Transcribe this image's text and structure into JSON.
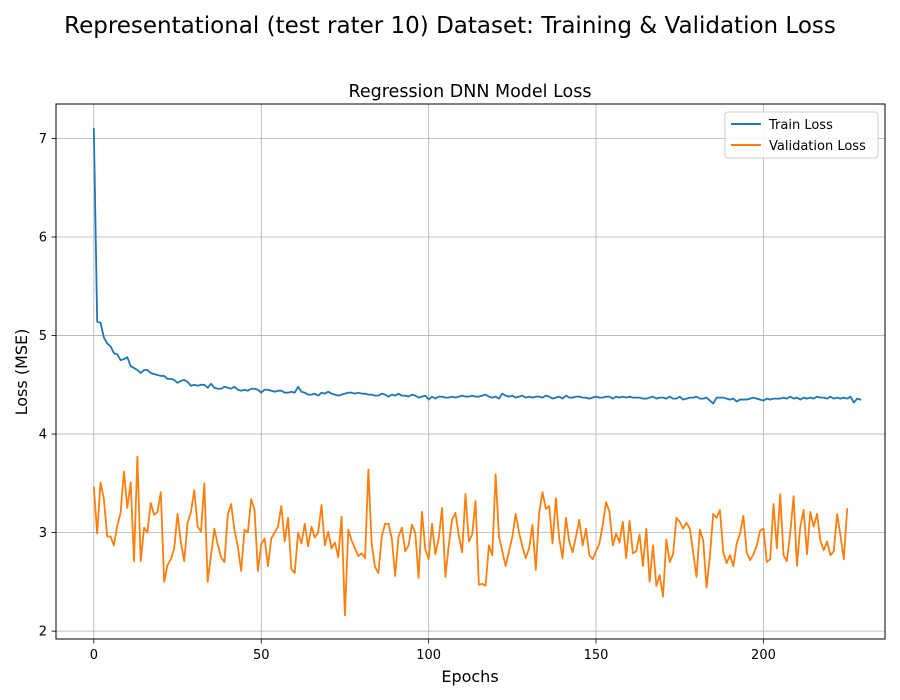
{
  "figure": {
    "suptitle": "Representational (test rater 10) Dataset: Training & Validation Loss"
  },
  "chart_data": {
    "type": "line",
    "title": "Regression DNN Model Loss",
    "xlabel": "Epochs",
    "ylabel": "Loss (MSE)",
    "xlim": [
      -11.3,
      236.3
    ],
    "ylim": [
      1.92,
      7.35
    ],
    "xticks": [
      0,
      50,
      100,
      150,
      200
    ],
    "yticks": [
      2,
      3,
      4,
      5,
      6,
      7
    ],
    "grid": true,
    "legend_position": "top-right",
    "series": [
      {
        "name": "Train Loss",
        "color": "#1f77b4",
        "x_start": 0,
        "x_step": 1,
        "values": [
          7.1,
          5.14,
          5.13,
          4.98,
          4.92,
          4.89,
          4.82,
          4.81,
          4.75,
          4.76,
          4.78,
          4.69,
          4.67,
          4.65,
          4.62,
          4.65,
          4.65,
          4.62,
          4.61,
          4.6,
          4.59,
          4.59,
          4.56,
          4.56,
          4.55,
          4.52,
          4.54,
          4.55,
          4.53,
          4.49,
          4.5,
          4.49,
          4.5,
          4.5,
          4.47,
          4.51,
          4.47,
          4.46,
          4.46,
          4.48,
          4.47,
          4.46,
          4.48,
          4.45,
          4.44,
          4.45,
          4.44,
          4.46,
          4.46,
          4.45,
          4.42,
          4.45,
          4.45,
          4.44,
          4.43,
          4.44,
          4.44,
          4.42,
          4.42,
          4.43,
          4.42,
          4.48,
          4.43,
          4.42,
          4.4,
          4.4,
          4.41,
          4.39,
          4.42,
          4.41,
          4.43,
          4.41,
          4.4,
          4.39,
          4.4,
          4.41,
          4.42,
          4.42,
          4.41,
          4.42,
          4.41,
          4.41,
          4.4,
          4.4,
          4.39,
          4.39,
          4.41,
          4.4,
          4.38,
          4.4,
          4.39,
          4.41,
          4.39,
          4.39,
          4.38,
          4.4,
          4.39,
          4.37,
          4.38,
          4.39,
          4.35,
          4.38,
          4.36,
          4.38,
          4.38,
          4.37,
          4.37,
          4.38,
          4.37,
          4.38,
          4.39,
          4.38,
          4.38,
          4.39,
          4.38,
          4.38,
          4.39,
          4.4,
          4.38,
          4.37,
          4.38,
          4.36,
          4.41,
          4.39,
          4.38,
          4.39,
          4.37,
          4.38,
          4.39,
          4.37,
          4.38,
          4.37,
          4.38,
          4.38,
          4.37,
          4.39,
          4.38,
          4.36,
          4.37,
          4.38,
          4.36,
          4.39,
          4.37,
          4.37,
          4.38,
          4.38,
          4.37,
          4.37,
          4.36,
          4.37,
          4.38,
          4.37,
          4.37,
          4.38,
          4.38,
          4.36,
          4.38,
          4.37,
          4.38,
          4.37,
          4.38,
          4.37,
          4.37,
          4.37,
          4.36,
          4.36,
          4.37,
          4.38,
          4.36,
          4.37,
          4.37,
          4.36,
          4.38,
          4.36,
          4.36,
          4.38,
          4.35,
          4.36,
          4.37,
          4.37,
          4.38,
          4.36,
          4.36,
          4.37,
          4.34,
          4.31,
          4.37,
          4.37,
          4.37,
          4.36,
          4.35,
          4.36,
          4.33,
          4.35,
          4.35,
          4.35,
          4.36,
          4.37,
          4.36,
          4.35,
          4.34,
          4.36,
          4.35,
          4.36,
          4.36,
          4.36,
          4.37,
          4.36,
          4.38,
          4.36,
          4.37,
          4.35,
          4.37,
          4.36,
          4.37,
          4.36,
          4.38,
          4.37,
          4.37,
          4.36,
          4.38,
          4.36,
          4.37,
          4.36,
          4.37,
          4.36,
          4.38,
          4.32,
          4.36,
          4.35
        ]
      },
      {
        "name": "Validation Loss",
        "color": "#ff7f0e",
        "x_start": 0,
        "x_step": 1,
        "values": [
          3.46,
          2.99,
          3.51,
          3.34,
          2.96,
          2.96,
          2.87,
          3.07,
          3.2,
          3.62,
          3.25,
          3.51,
          2.71,
          3.77,
          2.71,
          3.05,
          3.0,
          3.3,
          3.18,
          3.21,
          3.41,
          2.5,
          2.67,
          2.73,
          2.84,
          3.19,
          2.9,
          2.71,
          3.1,
          3.21,
          3.43,
          3.06,
          3.01,
          3.5,
          2.5,
          2.77,
          3.04,
          2.88,
          2.75,
          2.7,
          3.18,
          3.29,
          3.03,
          2.86,
          2.61,
          3.03,
          3.0,
          3.34,
          3.23,
          2.61,
          2.88,
          2.94,
          2.66,
          2.94,
          3.0,
          3.06,
          3.27,
          2.91,
          3.15,
          2.63,
          2.59,
          3.0,
          2.89,
          3.09,
          2.86,
          3.06,
          2.95,
          3.0,
          3.28,
          2.87,
          3.01,
          2.84,
          2.9,
          2.75,
          3.16,
          2.16,
          3.03,
          2.92,
          2.84,
          2.76,
          2.79,
          2.74,
          3.64,
          2.88,
          2.65,
          2.59,
          2.96,
          3.09,
          3.09,
          2.94,
          2.56,
          2.96,
          3.05,
          2.81,
          2.87,
          3.08,
          3.0,
          2.54,
          3.21,
          2.83,
          2.73,
          3.09,
          2.78,
          2.94,
          3.25,
          2.55,
          2.87,
          3.13,
          3.2,
          2.97,
          2.8,
          3.39,
          2.91,
          2.98,
          3.32,
          2.47,
          2.48,
          2.46,
          2.87,
          2.77,
          3.59,
          2.96,
          2.81,
          2.66,
          2.81,
          2.96,
          3.19,
          3.0,
          2.86,
          2.74,
          2.84,
          3.08,
          2.62,
          3.2,
          3.41,
          3.24,
          3.27,
          2.89,
          3.35,
          2.94,
          2.74,
          3.15,
          2.91,
          2.8,
          2.96,
          3.13,
          2.87,
          3.04,
          2.77,
          2.73,
          2.81,
          2.89,
          3.08,
          3.31,
          3.21,
          2.87,
          2.99,
          2.9,
          3.11,
          2.74,
          3.12,
          2.79,
          2.81,
          2.98,
          2.66,
          3.04,
          2.5,
          2.87,
          2.46,
          2.57,
          2.35,
          2.93,
          2.7,
          2.78,
          3.15,
          3.11,
          3.04,
          3.1,
          3.04,
          2.8,
          2.55,
          3.03,
          2.92,
          2.44,
          2.76,
          3.19,
          3.15,
          3.23,
          2.8,
          2.69,
          2.77,
          2.66,
          2.89,
          2.99,
          3.17,
          2.8,
          2.72,
          2.78,
          2.87,
          3.02,
          3.04,
          2.7,
          2.73,
          3.29,
          2.84,
          3.39,
          2.77,
          2.71,
          3.0,
          3.37,
          2.66,
          3.06,
          3.23,
          2.78,
          3.21,
          3.06,
          3.19,
          2.92,
          2.82,
          2.91,
          2.77,
          2.81,
          3.19,
          2.97,
          2.73,
          3.24
        ]
      }
    ]
  }
}
